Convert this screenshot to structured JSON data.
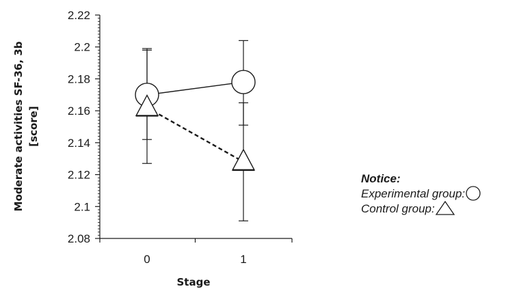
{
  "chart_data": {
    "type": "line",
    "title": "",
    "xlabel": "Stage",
    "ylabel_lines": [
      "Moderate activities SF-36, 3b",
      "[score]"
    ],
    "categories": [
      "0",
      "1"
    ],
    "ylim": [
      2.08,
      2.22
    ],
    "yticks": [
      "2.08",
      "2.1",
      "2.12",
      "2.14",
      "2.16",
      "2.18",
      "2.2",
      "2.22"
    ],
    "grid": false,
    "legend_position": "right",
    "series": [
      {
        "name": "Experimental group",
        "marker": "circle",
        "line_style": "solid",
        "values": [
          2.17,
          2.178
        ],
        "error_low": [
          2.142,
          2.151
        ],
        "error_high": [
          2.198,
          2.204
        ]
      },
      {
        "name": "Control group",
        "marker": "triangle",
        "line_style": "dashed",
        "values": [
          2.162,
          2.128
        ],
        "error_low": [
          2.127,
          2.091
        ],
        "error_high": [
          2.199,
          2.165
        ]
      }
    ]
  },
  "notice": {
    "title": "Notice:",
    "experimental_label": "Experimental group:",
    "control_label": "Control group:"
  },
  "colors": {
    "stroke": "#1a1a1a",
    "background": "#ffffff"
  }
}
